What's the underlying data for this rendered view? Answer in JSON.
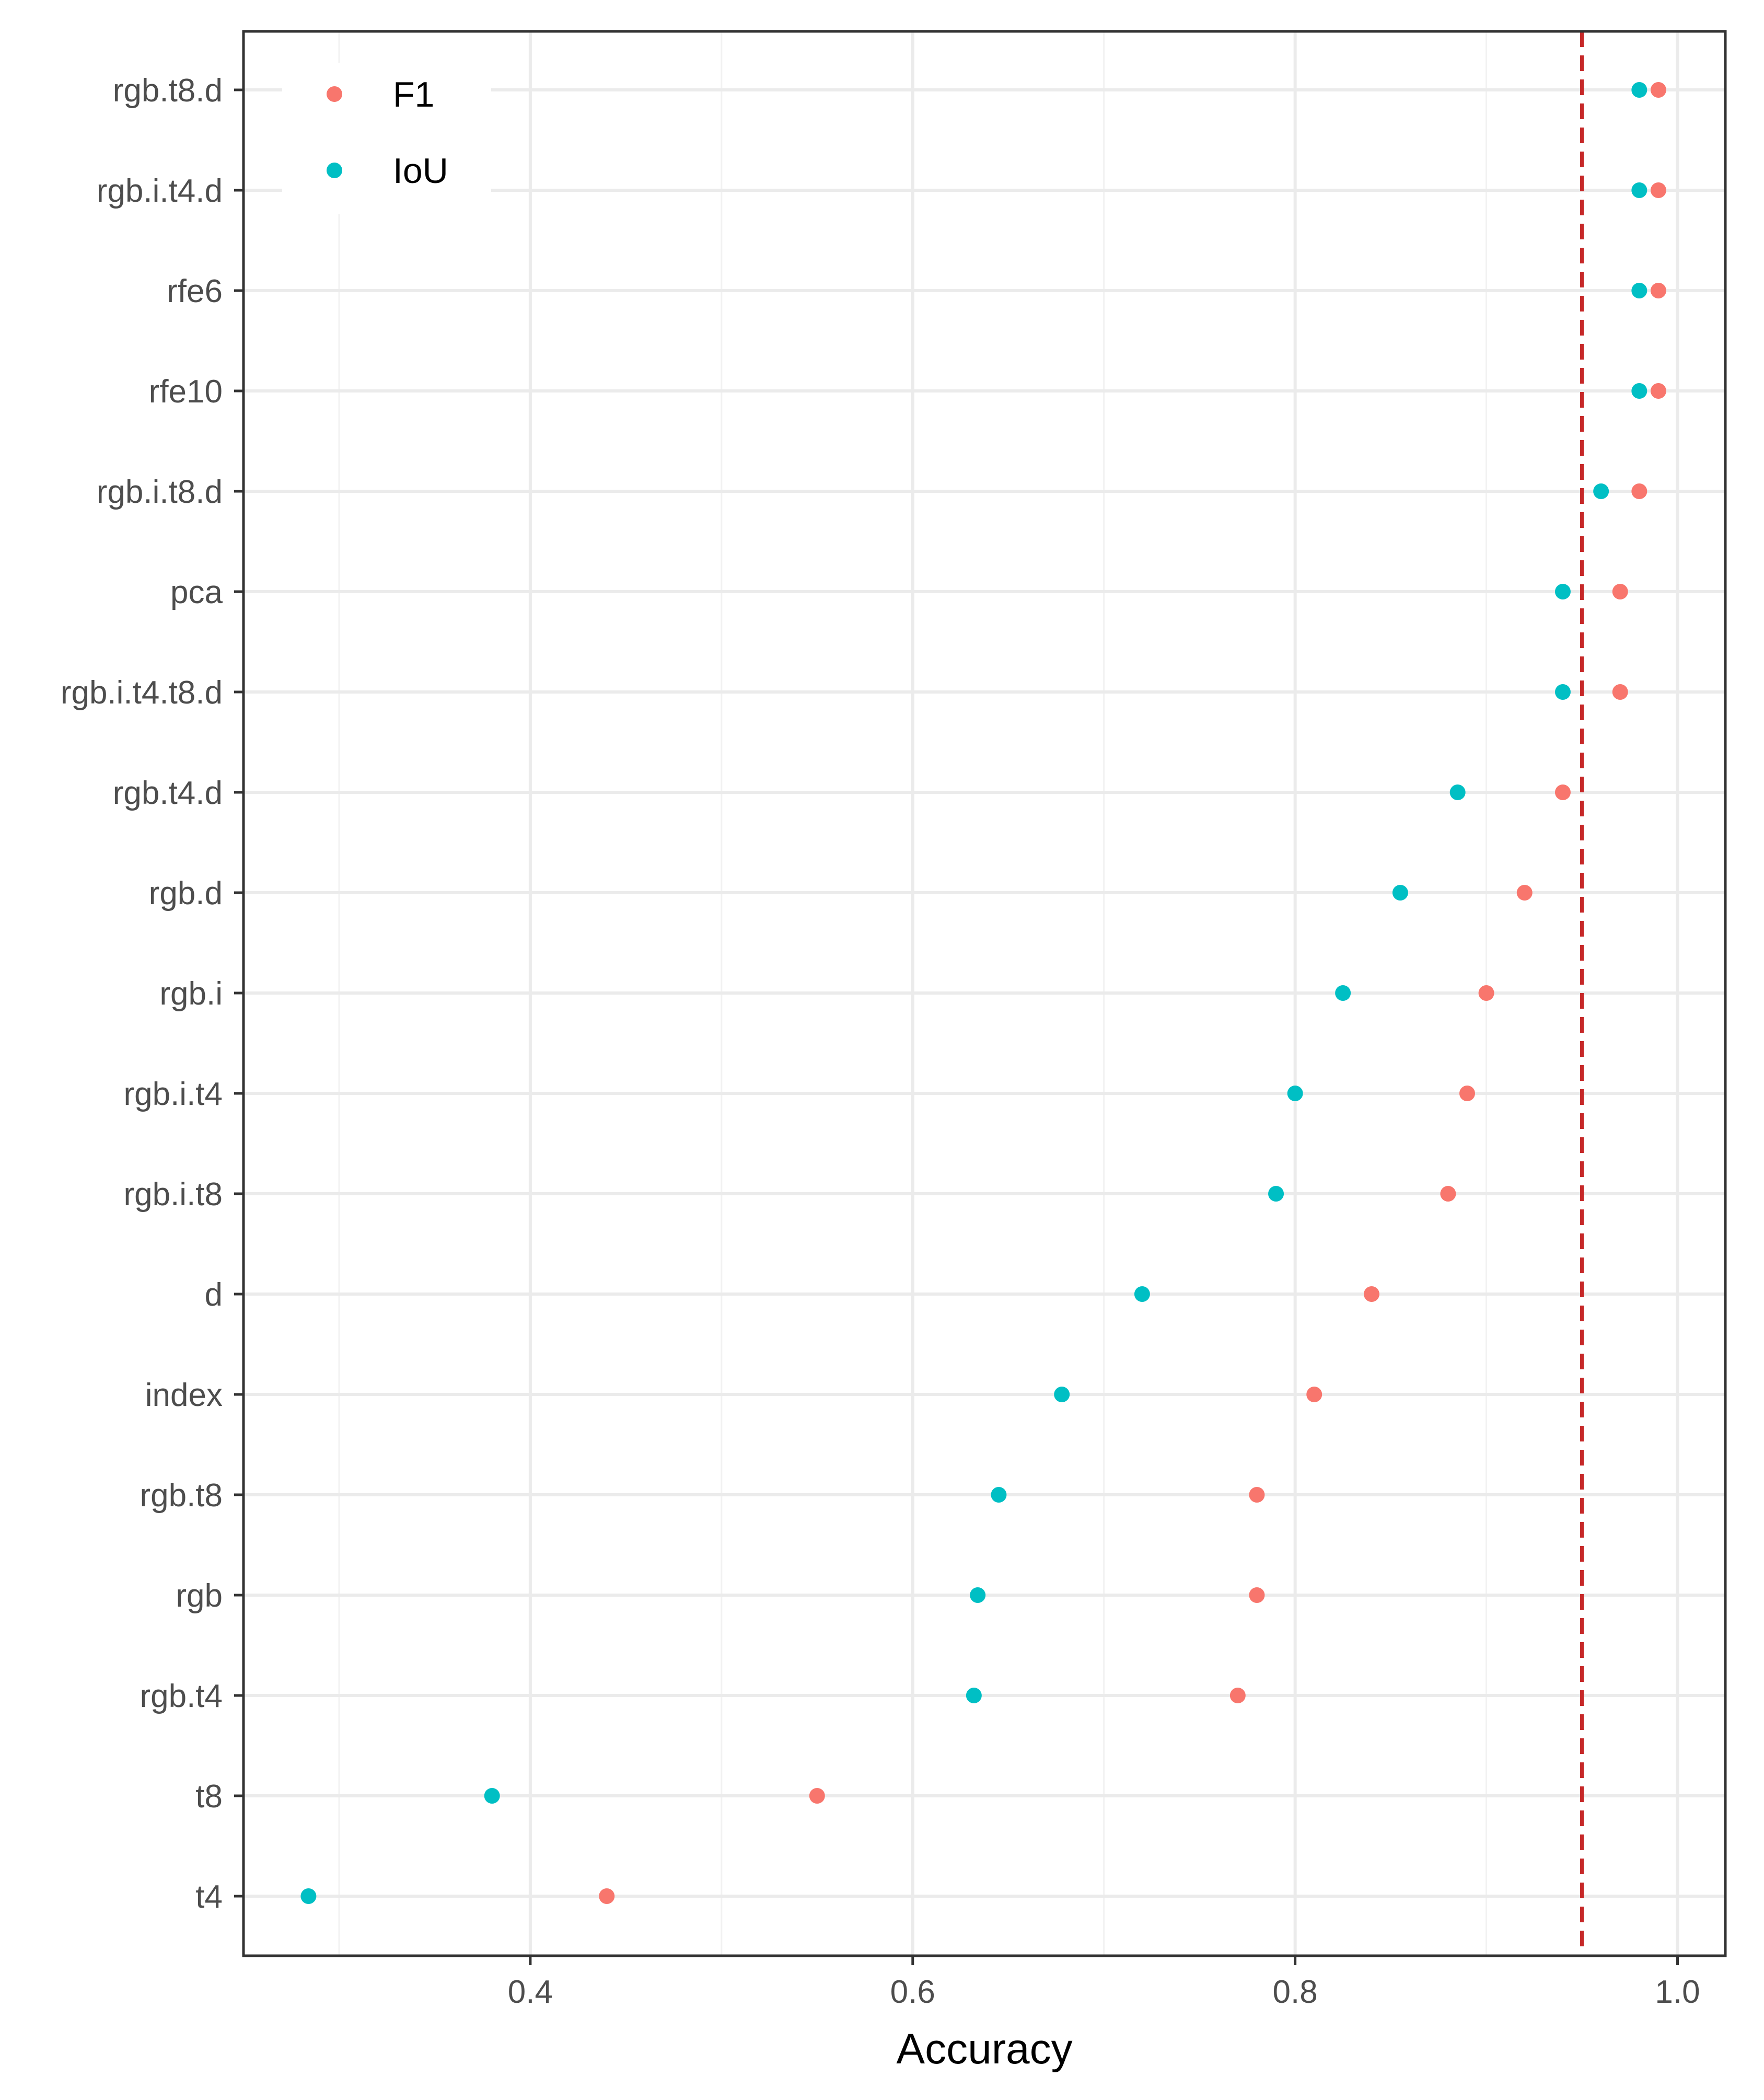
{
  "chart_data": {
    "type": "scatter",
    "title": "",
    "xlabel": "Accuracy",
    "ylabel": "",
    "xlim": [
      0.25,
      1.025
    ],
    "xticks": [
      0.4,
      0.6,
      0.8,
      1.0
    ],
    "xtick_labels": [
      "0.4",
      "0.6",
      "0.8",
      "1.0"
    ],
    "grid": true,
    "legend_position": "top-left",
    "reference_line": {
      "x": 0.95,
      "style": "dashed",
      "color": "#c62828"
    },
    "categories": [
      "rgb.t8.d",
      "rgb.i.t4.d",
      "rfe6",
      "rfe10",
      "rgb.i.t8.d",
      "pca",
      "rgb.i.t4.t8.d",
      "rgb.t4.d",
      "rgb.d",
      "rgb.i",
      "rgb.i.t4",
      "rgb.i.t8",
      "d",
      "index",
      "rgb.t8",
      "rgb",
      "rgb.t4",
      "t8",
      "t4"
    ],
    "series": [
      {
        "name": "F1",
        "color": "#F8766D",
        "values": [
          0.99,
          0.99,
          0.99,
          0.99,
          0.98,
          0.97,
          0.97,
          0.94,
          0.92,
          0.9,
          0.89,
          0.88,
          0.84,
          0.81,
          0.78,
          0.78,
          0.77,
          0.55,
          0.44
        ]
      },
      {
        "name": "IoU",
        "color": "#00BFC4",
        "values": [
          0.98,
          0.98,
          0.98,
          0.98,
          0.96,
          0.94,
          0.94,
          0.885,
          0.855,
          0.825,
          0.8,
          0.79,
          0.72,
          0.678,
          0.645,
          0.634,
          0.632,
          0.38,
          0.284
        ]
      }
    ]
  }
}
